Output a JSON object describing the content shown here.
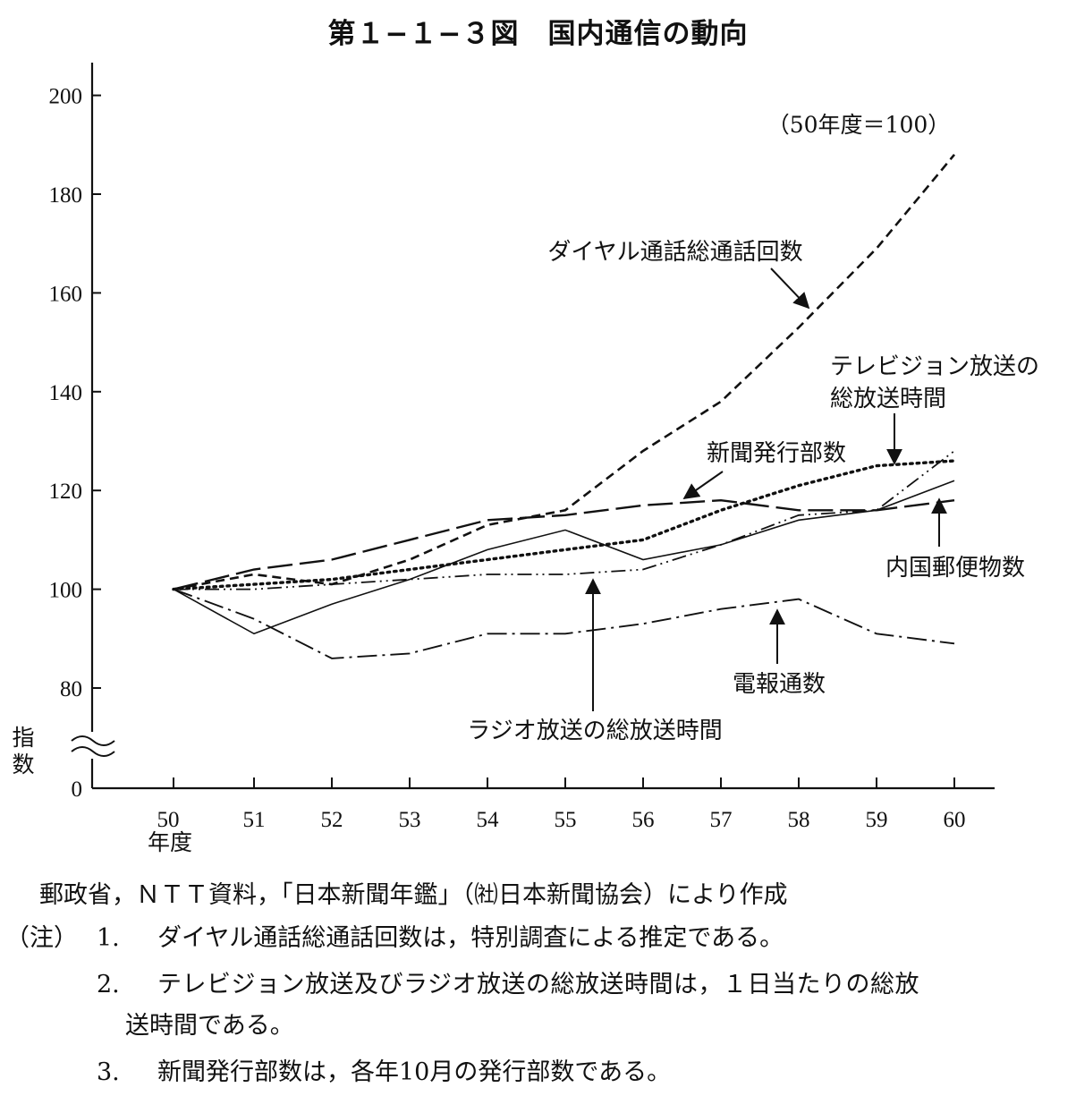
{
  "chart_data": {
    "type": "line",
    "title": "第１−１−３図　国内通信の動向",
    "unit_note": "（50年度＝100）",
    "ylabel": "指数",
    "xlabel": "年度",
    "x": [
      "50",
      "51",
      "52",
      "53",
      "54",
      "55",
      "56",
      "57",
      "58",
      "59",
      "60"
    ],
    "y_ticks": [
      "0",
      "80",
      "100",
      "120",
      "140",
      "160",
      "180",
      "200"
    ],
    "ylim": [
      80,
      200
    ],
    "y_axis_break": true,
    "grid": false,
    "legend": "direct labels with arrows",
    "series": [
      {
        "name": "ダイヤル通話総通話回数",
        "style": "dashed",
        "values": [
          100,
          103,
          101,
          106,
          113,
          116,
          128,
          138,
          153,
          169,
          188
        ]
      },
      {
        "name": "テレビジョン放送の総放送時間",
        "style": "dotted",
        "values": [
          100,
          101,
          102,
          104,
          106,
          108,
          110,
          116,
          121,
          125,
          126
        ]
      },
      {
        "name": "新聞発行部数",
        "style": "long-dash",
        "values": [
          100,
          104,
          106,
          110,
          114,
          115,
          117,
          118,
          116,
          116,
          118
        ]
      },
      {
        "name": "内国郵便物数",
        "style": "solid",
        "values": [
          100,
          91,
          97,
          102,
          108,
          112,
          106,
          109,
          114,
          116,
          122
        ]
      },
      {
        "name": "ラジオ放送の総放送時間",
        "style": "dash-dot-dot",
        "values": [
          100,
          100,
          101,
          102,
          103,
          103,
          104,
          109,
          115,
          116,
          128
        ]
      },
      {
        "name": "電報通数",
        "style": "dash-dot",
        "values": [
          100,
          94,
          86,
          87,
          91,
          91,
          93,
          96,
          98,
          91,
          89
        ]
      }
    ]
  },
  "notes": {
    "source": "郵政省，ＮＴＴ資料，「日本新聞年鑑」（㈳日本新聞協会）により作成",
    "note_label": "（注）",
    "note1_num": "1.",
    "note1": "ダイヤル通話総通話回数は，特別調査による推定である。",
    "note2_num": "2.",
    "note2a": "テレビジョン放送及びラジオ放送の総放送時間は，１日当たりの総放",
    "note2b": "送時間である。",
    "note3_num": "3.",
    "note3": "新聞発行部数は，各年10月の発行部数である。"
  }
}
